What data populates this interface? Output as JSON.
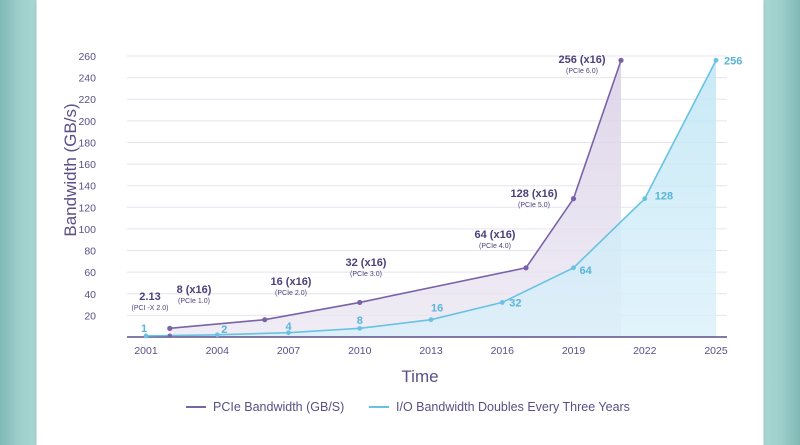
{
  "chart_data": {
    "type": "area",
    "xlabel": "Time",
    "ylabel": "Bandwidth (GB/s)",
    "x_ticks": [
      "2001",
      "2004",
      "2007",
      "2010",
      "2013",
      "2016",
      "2019",
      "2022",
      "2025"
    ],
    "x_range": [
      2000,
      2025.5
    ],
    "y_ticks": [
      20,
      40,
      60,
      80,
      100,
      120,
      140,
      160,
      180,
      200,
      220,
      240,
      260
    ],
    "ylim": [
      0,
      260
    ],
    "legend_position": "bottom-center",
    "series": [
      {
        "name": "PCIe Bandwidth (GB/S)",
        "color": "#7a62a8",
        "points": [
          {
            "x": 2002,
            "y": 8
          },
          {
            "x": 2006,
            "y": 16
          },
          {
            "x": 2010,
            "y": 32
          },
          {
            "x": 2017,
            "y": 64
          },
          {
            "x": 2019,
            "y": 128
          },
          {
            "x": 2021,
            "y": 256
          }
        ]
      },
      {
        "name": "I/O Bandwidth Doubles Every Three Years",
        "color": "#69c2e2",
        "points": [
          {
            "x": 2001,
            "y": 1
          },
          {
            "x": 2004,
            "y": 2
          },
          {
            "x": 2007,
            "y": 4
          },
          {
            "x": 2010,
            "y": 8
          },
          {
            "x": 2013,
            "y": 16
          },
          {
            "x": 2016,
            "y": 32
          },
          {
            "x": 2019,
            "y": 64
          },
          {
            "x": 2022,
            "y": 128
          },
          {
            "x": 2025,
            "y": 256
          }
        ]
      }
    ],
    "annotations": [
      {
        "x": 2001,
        "y": 2.13,
        "text": "2.13",
        "sub": "(PCI -X 2.0)"
      },
      {
        "x": 2002,
        "y": 8,
        "text": "8 (x16)",
        "sub": "(PCIe 1.0)"
      },
      {
        "x": 2006,
        "y": 16,
        "text": "16 (x16)",
        "sub": "(PCIe 2.0)"
      },
      {
        "x": 2010,
        "y": 32,
        "text": "32 (x16)",
        "sub": "(PCIe 3.0)"
      },
      {
        "x": 2017,
        "y": 64,
        "text": "64 (x16)",
        "sub": "(PCIe 4.0)"
      },
      {
        "x": 2019,
        "y": 128,
        "text": "128 (x16)",
        "sub": "(PCIe 5.0)"
      },
      {
        "x": 2021,
        "y": 256,
        "text": "256 (x16)",
        "sub": "(PCIe 6.0)"
      }
    ],
    "io_value_labels": [
      "1",
      "2",
      "4",
      "8",
      "16",
      "32",
      "64",
      "128",
      "256"
    ]
  }
}
